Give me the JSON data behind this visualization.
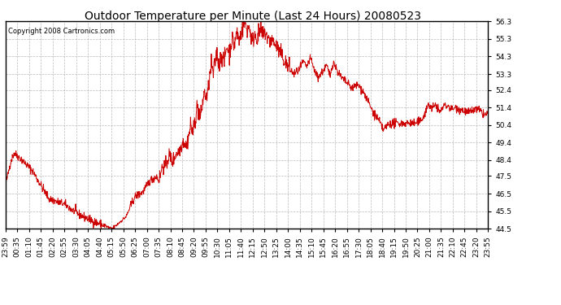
{
  "title": "Outdoor Temperature per Minute (Last 24 Hours) 20080523",
  "copyright": "Copyright 2008 Cartronics.com",
  "line_color": "#cc0000",
  "background_color": "#ffffff",
  "plot_bg_color": "#ffffff",
  "grid_color": "#aaaaaa",
  "ylim": [
    44.5,
    56.3
  ],
  "yticks": [
    44.5,
    45.5,
    46.5,
    47.5,
    48.4,
    49.4,
    50.4,
    51.4,
    52.4,
    53.3,
    54.3,
    55.3,
    56.3
  ],
  "xtick_labels": [
    "23:59",
    "00:35",
    "01:10",
    "01:45",
    "02:20",
    "02:55",
    "03:30",
    "04:05",
    "04:40",
    "05:15",
    "05:50",
    "06:25",
    "07:00",
    "07:35",
    "08:10",
    "08:45",
    "09:20",
    "09:55",
    "10:30",
    "11:05",
    "11:40",
    "12:15",
    "12:50",
    "13:25",
    "14:00",
    "14:35",
    "15:10",
    "15:45",
    "16:20",
    "16:55",
    "17:30",
    "18:05",
    "18:40",
    "19:15",
    "19:50",
    "20:25",
    "21:00",
    "21:35",
    "22:10",
    "22:45",
    "23:20",
    "23:55"
  ],
  "title_fontsize": 10,
  "tick_fontsize": 6.5,
  "copyright_fontsize": 6
}
